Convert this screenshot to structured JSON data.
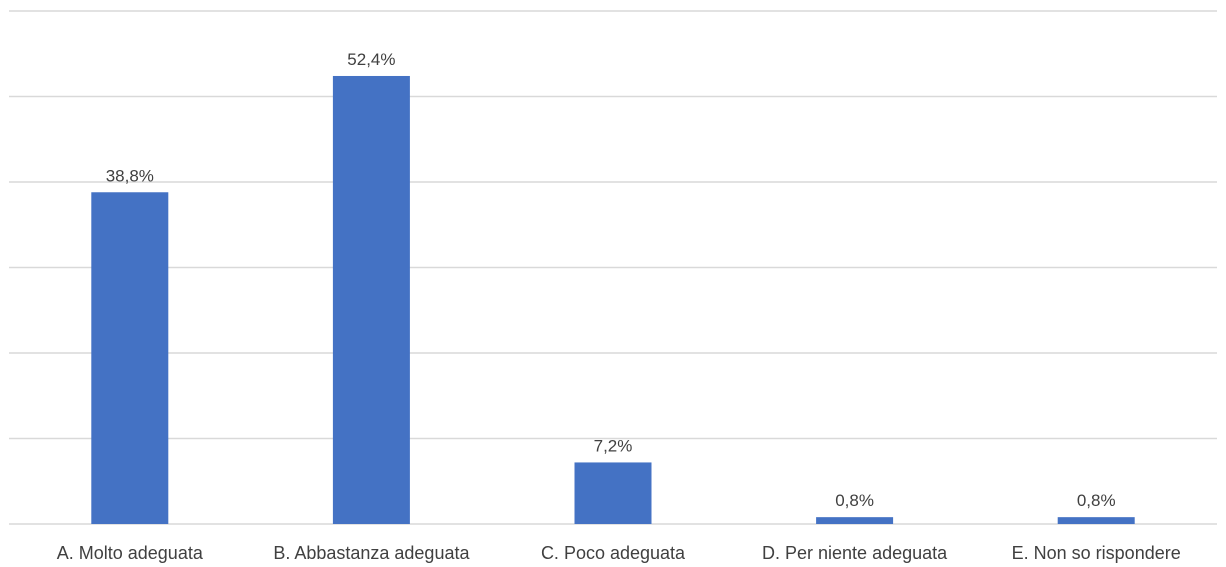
{
  "chart_data": {
    "type": "bar",
    "categories": [
      "A. Molto adeguata",
      "B. Abbastanza adeguata",
      "C. Poco adeguata",
      "D. Per niente adeguata",
      "E. Non so rispondere"
    ],
    "values": [
      38.8,
      52.4,
      7.2,
      0.8,
      0.8
    ],
    "data_labels": [
      "38,8%",
      "52,4%",
      "7,2%",
      "0,8%",
      "0,8%"
    ],
    "title": "",
    "xlabel": "",
    "ylabel": "",
    "ylim": [
      0,
      60
    ],
    "y_gridlines": [
      10,
      20,
      30,
      40,
      50,
      60
    ],
    "grid": true,
    "legend": "none",
    "colors": {
      "bar": "#4472c4",
      "grid": "#d9d9d9",
      "text": "#404040"
    }
  }
}
